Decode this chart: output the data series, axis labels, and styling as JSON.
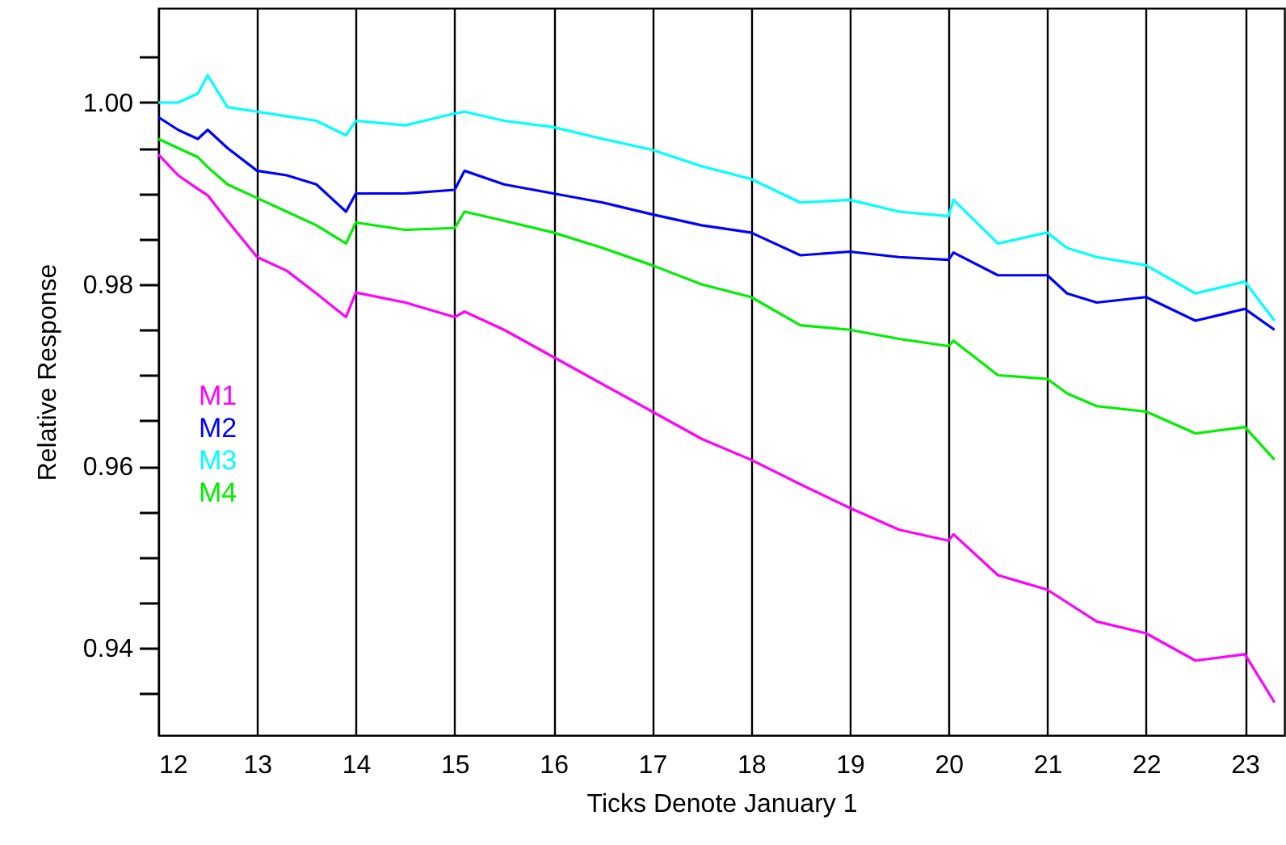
{
  "chart_data": {
    "type": "line",
    "xlabel": "Ticks Denote January 1",
    "ylabel": "Relative Response",
    "x": [
      12,
      12.2,
      12.4,
      12.5,
      12.7,
      13,
      13.3,
      13.6,
      13.9,
      14,
      14.5,
      15,
      15.1,
      15.5,
      16,
      16.5,
      17,
      17.5,
      18,
      18.5,
      19,
      19.5,
      20,
      20.05,
      20.5,
      21,
      21.2,
      21.5,
      22,
      22.5,
      23,
      23.3
    ],
    "series": [
      {
        "name": "M1",
        "color": "#ff00ff",
        "values": [
          0.9943,
          0.992,
          0.9905,
          0.9898,
          0.987,
          0.983,
          0.9815,
          0.979,
          0.9764,
          0.9791,
          0.978,
          0.9764,
          0.977,
          0.975,
          0.972,
          0.969,
          0.966,
          0.963,
          0.9607,
          0.958,
          0.9554,
          0.953,
          0.9518,
          0.9525,
          0.948,
          0.9464,
          0.945,
          0.9429,
          0.9416,
          0.9386,
          0.9393,
          0.934
        ]
      },
      {
        "name": "M2",
        "color": "#0000ff",
        "values": [
          0.9984,
          0.997,
          0.996,
          0.997,
          0.995,
          0.9925,
          0.992,
          0.991,
          0.988,
          0.99,
          0.99,
          0.9904,
          0.9925,
          0.991,
          0.99,
          0.989,
          0.9877,
          0.9865,
          0.9857,
          0.9832,
          0.9836,
          0.983,
          0.9827,
          0.9835,
          0.981,
          0.981,
          0.979,
          0.978,
          0.9786,
          0.976,
          0.9773,
          0.975
        ]
      },
      {
        "name": "M3",
        "color": "#00ffff",
        "values": [
          1.0,
          1.0,
          1.001,
          1.003,
          0.9995,
          0.999,
          0.9985,
          0.998,
          0.9964,
          0.998,
          0.9975,
          0.9988,
          0.999,
          0.998,
          0.9973,
          0.996,
          0.9948,
          0.993,
          0.9916,
          0.989,
          0.9893,
          0.988,
          0.9875,
          0.9893,
          0.9845,
          0.9857,
          0.984,
          0.983,
          0.9821,
          0.979,
          0.9803,
          0.976
        ]
      },
      {
        "name": "M4",
        "color": "#00ee00",
        "values": [
          0.996,
          0.995,
          0.994,
          0.9929,
          0.991,
          0.9895,
          0.988,
          0.9865,
          0.9845,
          0.9868,
          0.986,
          0.9862,
          0.988,
          0.987,
          0.9857,
          0.984,
          0.9821,
          0.98,
          0.9786,
          0.9755,
          0.975,
          0.974,
          0.9732,
          0.9738,
          0.97,
          0.9696,
          0.968,
          0.9666,
          0.966,
          0.9636,
          0.9643,
          0.9607
        ]
      }
    ],
    "xlim": [
      12,
      23.4
    ],
    "xticks": [
      12,
      13,
      14,
      15,
      16,
      17,
      18,
      19,
      20,
      21,
      22,
      23
    ],
    "ylim": [
      0.9304,
      1.0104
    ],
    "yticks": [
      {
        "value": 0.935,
        "label": null
      },
      0.94,
      {
        "value": 0.945,
        "label": null
      },
      {
        "value": 0.95,
        "label": null
      },
      {
        "value": 0.955,
        "label": null
      },
      0.96,
      {
        "value": 0.965,
        "label": null
      },
      {
        "value": 0.97,
        "label": null
      },
      {
        "value": 0.975,
        "label": null
      },
      0.98,
      {
        "value": 0.985,
        "label": null
      },
      {
        "value": 0.99,
        "label": null
      },
      {
        "value": 0.995,
        "label": null
      },
      {
        "value": 1.0,
        "label": "1.00"
      },
      {
        "value": 1.005,
        "label": null
      }
    ],
    "grid": "x",
    "legend": "left"
  }
}
